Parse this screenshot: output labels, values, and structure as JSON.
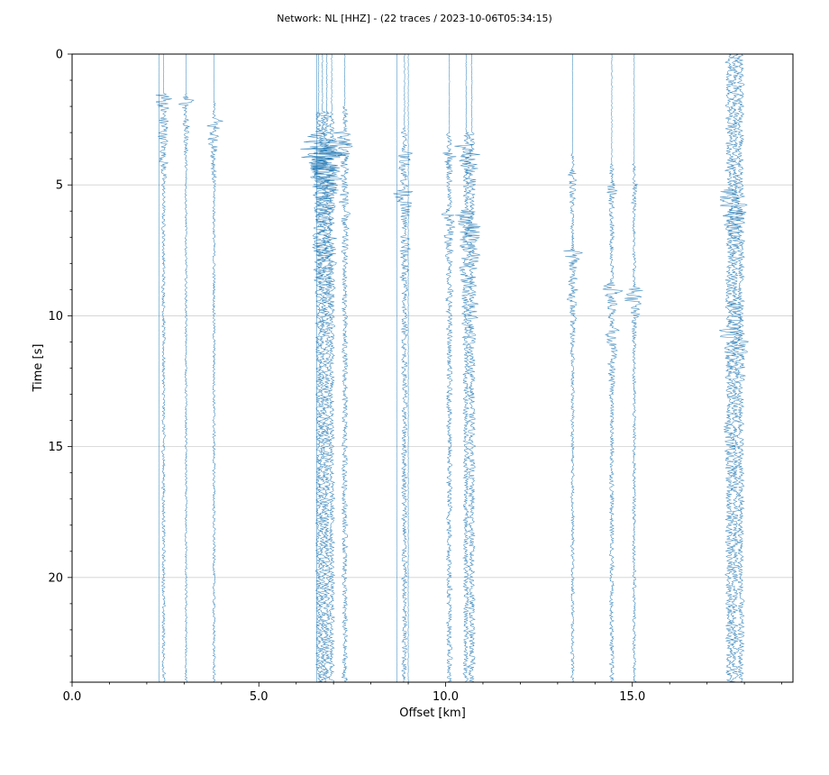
{
  "chart_data": {
    "type": "seismic_section",
    "title": "Network: NL [HHZ] - (22 traces / 2023-10-06T05:34:15)",
    "xlabel": "Offset [km]",
    "ylabel": "Time [s]",
    "xlim": [
      0,
      19.3
    ],
    "ylim": [
      24,
      0
    ],
    "x_ticks": [
      0,
      5,
      10,
      15
    ],
    "x_tick_labels": [
      "0.0",
      "5.0",
      "10.0",
      "15.0"
    ],
    "y_ticks": [
      0,
      5,
      10,
      15,
      20
    ],
    "y_tick_labels": [
      "0",
      "5",
      "10",
      "15",
      "20"
    ],
    "grid": "horizontal",
    "y_axis_inverted": true,
    "colors": {
      "trace": "#1f77b4",
      "grid": "#d0d0d0",
      "axes": "#000000"
    },
    "traces": [
      {
        "offset": 2.33,
        "amp": 0.05,
        "onset": 24,
        "events": []
      },
      {
        "offset": 2.45,
        "amp": 0.06,
        "onset": 1.5,
        "events": [
          {
            "t": 1.6,
            "amp": 0.55,
            "dur": 0.5
          },
          {
            "t": 2.5,
            "amp": 0.3,
            "dur": 1.5
          },
          {
            "t": 4.0,
            "amp": 0.2,
            "dur": 1.0
          }
        ]
      },
      {
        "offset": 3.05,
        "amp": 0.04,
        "onset": 1.5,
        "events": [
          {
            "t": 1.7,
            "amp": 0.4,
            "dur": 0.4
          },
          {
            "t": 2.5,
            "amp": 0.15,
            "dur": 1.5
          }
        ]
      },
      {
        "offset": 3.8,
        "amp": 0.05,
        "onset": 1.8,
        "events": [
          {
            "t": 2.5,
            "amp": 0.4,
            "dur": 1.2
          },
          {
            "t": 4.2,
            "amp": 0.15,
            "dur": 1.0
          }
        ]
      },
      {
        "offset": 6.6,
        "amp": 0.1,
        "onset": 2.2,
        "events": [
          {
            "t": 3.0,
            "amp": 0.6,
            "dur": 2.5
          },
          {
            "t": 6.5,
            "amp": 0.25,
            "dur": 4.0
          }
        ]
      },
      {
        "offset": 6.7,
        "amp": 0.12,
        "onset": 2.2,
        "events": [
          {
            "t": 3.6,
            "amp": 0.75,
            "dur": 2.5
          },
          {
            "t": 7.0,
            "amp": 0.3,
            "dur": 4.0
          }
        ]
      },
      {
        "offset": 6.82,
        "amp": 0.12,
        "onset": 2.2,
        "events": [
          {
            "t": 3.8,
            "amp": 0.8,
            "dur": 2.0
          },
          {
            "t": 7.5,
            "amp": 0.3,
            "dur": 4.0
          }
        ]
      },
      {
        "offset": 6.95,
        "amp": 0.1,
        "onset": 2.2,
        "events": [
          {
            "t": 3.3,
            "amp": 0.7,
            "dur": 2.0
          },
          {
            "t": 7.0,
            "amp": 0.25,
            "dur": 4.0
          }
        ]
      },
      {
        "offset": 7.3,
        "amp": 0.1,
        "onset": 2.0,
        "events": [
          {
            "t": 3.0,
            "amp": 0.45,
            "dur": 1.5
          },
          {
            "t": 5.0,
            "amp": 0.25,
            "dur": 3.0
          }
        ]
      },
      {
        "offset": 8.7,
        "amp": 0.04,
        "onset": 24,
        "events": []
      },
      {
        "offset": 8.9,
        "amp": 0.1,
        "onset": 2.8,
        "events": [
          {
            "t": 3.8,
            "amp": 0.3,
            "dur": 1.5
          },
          {
            "t": 5.2,
            "amp": 0.45,
            "dur": 1.0
          },
          {
            "t": 7.0,
            "amp": 0.25,
            "dur": 3.0
          }
        ]
      },
      {
        "offset": 10.1,
        "amp": 0.1,
        "onset": 3.0,
        "events": [
          {
            "t": 3.8,
            "amp": 0.3,
            "dur": 1.0
          },
          {
            "t": 6.0,
            "amp": 0.3,
            "dur": 2.0
          },
          {
            "t": 9.0,
            "amp": 0.15,
            "dur": 3.0
          }
        ]
      },
      {
        "offset": 10.55,
        "amp": 0.1,
        "onset": 3.0,
        "events": [
          {
            "t": 3.5,
            "amp": 0.4,
            "dur": 1.0
          },
          {
            "t": 6.0,
            "amp": 0.5,
            "dur": 2.0
          },
          {
            "t": 8.0,
            "amp": 0.3,
            "dur": 3.0
          }
        ]
      },
      {
        "offset": 10.7,
        "amp": 0.12,
        "onset": 3.0,
        "events": [
          {
            "t": 3.8,
            "amp": 0.4,
            "dur": 1.5
          },
          {
            "t": 6.5,
            "amp": 0.45,
            "dur": 2.5
          },
          {
            "t": 9.5,
            "amp": 0.25,
            "dur": 3.0
          }
        ]
      },
      {
        "offset": 13.4,
        "amp": 0.06,
        "onset": 3.8,
        "events": [
          {
            "t": 4.5,
            "amp": 0.2,
            "dur": 1.5
          },
          {
            "t": 7.5,
            "amp": 0.45,
            "dur": 1.0
          },
          {
            "t": 9.0,
            "amp": 0.2,
            "dur": 2.5
          }
        ]
      },
      {
        "offset": 14.45,
        "amp": 0.08,
        "onset": 4.2,
        "events": [
          {
            "t": 5.0,
            "amp": 0.2,
            "dur": 1.5
          },
          {
            "t": 8.8,
            "amp": 0.45,
            "dur": 1.0
          },
          {
            "t": 10.5,
            "amp": 0.25,
            "dur": 2.5
          }
        ]
      },
      {
        "offset": 15.05,
        "amp": 0.06,
        "onset": 4.2,
        "events": [
          {
            "t": 5.0,
            "amp": 0.15,
            "dur": 1.5
          },
          {
            "t": 9.0,
            "amp": 0.5,
            "dur": 1.0
          }
        ]
      },
      {
        "offset": 17.6,
        "amp": 0.14,
        "onset": 0.0,
        "events": [
          {
            "t": 5.2,
            "amp": 0.45,
            "dur": 1.5
          },
          {
            "t": 10.5,
            "amp": 0.45,
            "dur": 1.5
          },
          {
            "t": 14.0,
            "amp": 0.25,
            "dur": 4.0
          }
        ]
      },
      {
        "offset": 17.75,
        "amp": 0.14,
        "onset": 0.0,
        "events": [
          {
            "t": 6.0,
            "amp": 0.4,
            "dur": 2.0
          },
          {
            "t": 9.5,
            "amp": 0.35,
            "dur": 2.5
          }
        ]
      },
      {
        "offset": 17.9,
        "amp": 0.12,
        "onset": 0.0,
        "events": [
          {
            "t": 5.5,
            "amp": 0.35,
            "dur": 2.0
          },
          {
            "t": 11.0,
            "amp": 0.3,
            "dur": 2.0
          }
        ]
      },
      {
        "offset": 9.0,
        "amp": 0.05,
        "onset": 24,
        "events": []
      },
      {
        "offset": 6.55,
        "amp": 0.05,
        "onset": 24,
        "events": []
      }
    ]
  }
}
